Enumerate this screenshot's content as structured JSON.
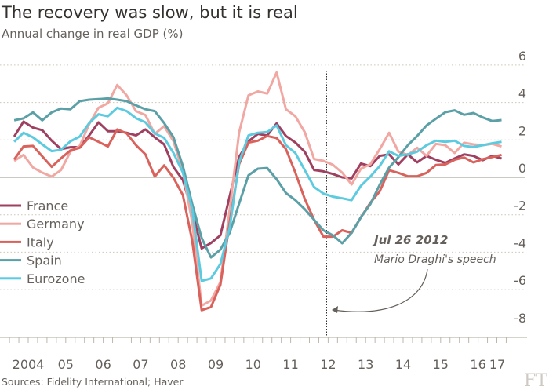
{
  "title": "The recovery was slow, but it is real",
  "subtitle": "Annual change in real GDP (%)",
  "source": "Sources: Fidelity International; Haver",
  "logo": "FT",
  "annotation": {
    "date": "Jul 26 2012",
    "text": "Mario Draghi's speech",
    "x": "2012-07-26"
  },
  "chart_data": {
    "type": "line",
    "title": "The recovery was slow, but it is real",
    "ylabel": "Annual change in real GDP (%)",
    "ylim": [
      -8,
      6
    ],
    "yticks": [
      6,
      4,
      2,
      0,
      -2,
      -4,
      -6,
      -8
    ],
    "ytick_labels": [
      "6",
      "4",
      "2",
      "0",
      "-2",
      "-4",
      "-6",
      "-8"
    ],
    "xtick_years": [
      2004,
      2005,
      2006,
      2007,
      2008,
      2009,
      2010,
      2011,
      2012,
      2013,
      2014,
      2015,
      2016,
      2017
    ],
    "xtick_labels": [
      "2004",
      "05",
      "06",
      "07",
      "08",
      "09",
      "10",
      "11",
      "12",
      "13",
      "14",
      "15",
      "16",
      "17"
    ],
    "grid": true,
    "legend_position": "left",
    "x": [
      "2004Q1",
      "2004Q2",
      "2004Q3",
      "2004Q4",
      "2005Q1",
      "2005Q2",
      "2005Q3",
      "2005Q4",
      "2006Q1",
      "2006Q2",
      "2006Q3",
      "2006Q4",
      "2007Q1",
      "2007Q2",
      "2007Q3",
      "2007Q4",
      "2008Q1",
      "2008Q2",
      "2008Q3",
      "2008Q4",
      "2009Q1",
      "2009Q2",
      "2009Q3",
      "2009Q4",
      "2010Q1",
      "2010Q2",
      "2010Q3",
      "2010Q4",
      "2011Q1",
      "2011Q2",
      "2011Q3",
      "2011Q4",
      "2012Q1",
      "2012Q2",
      "2012Q3",
      "2012Q4",
      "2013Q1",
      "2013Q2",
      "2013Q3",
      "2013Q4",
      "2014Q1",
      "2014Q2",
      "2014Q3",
      "2014Q4",
      "2015Q1",
      "2015Q2",
      "2015Q3",
      "2015Q4",
      "2016Q1",
      "2016Q2",
      "2016Q3",
      "2016Q4",
      "2017Q1"
    ],
    "series": [
      {
        "name": "France",
        "color": "#9f4061",
        "values": [
          2.18,
          2.98,
          2.66,
          2.52,
          1.96,
          1.51,
          1.61,
          1.62,
          2.24,
          2.94,
          2.46,
          2.46,
          2.38,
          2.24,
          2.56,
          2.14,
          1.76,
          0.55,
          -0.15,
          -1.84,
          -3.8,
          -3.51,
          -3.1,
          -1.0,
          1.09,
          1.93,
          2.32,
          2.24,
          2.88,
          2.21,
          1.86,
          1.37,
          0.39,
          0.32,
          0.18,
          0.0,
          -0.06,
          0.74,
          0.6,
          1.15,
          1.23,
          0.69,
          1.23,
          0.8,
          1.15,
          0.94,
          0.77,
          1.01,
          1.23,
          1.15,
          0.92,
          1.15,
          1.01
        ]
      },
      {
        "name": "Germany",
        "color": "#f1a7a2",
        "values": [
          0.88,
          1.2,
          0.53,
          0.25,
          0.04,
          0.39,
          1.37,
          1.68,
          2.84,
          3.72,
          3.96,
          4.94,
          4.38,
          3.54,
          3.33,
          2.32,
          2.74,
          1.93,
          0.3,
          -2.4,
          -6.86,
          -6.58,
          -5.6,
          -1.7,
          2.4,
          4.38,
          4.59,
          4.48,
          5.6,
          3.64,
          3.26,
          2.42,
          0.98,
          0.88,
          0.67,
          0.25,
          -0.38,
          0.46,
          0.7,
          1.5,
          2.38,
          1.37,
          1.2,
          1.58,
          1.15,
          1.79,
          1.72,
          1.3,
          1.85,
          1.76,
          1.72,
          1.79,
          1.65
        ]
      },
      {
        "name": "Italy",
        "color": "#d9625c",
        "values": [
          0.95,
          1.65,
          1.68,
          1.12,
          0.56,
          1.02,
          1.44,
          1.58,
          2.14,
          1.9,
          1.65,
          2.56,
          2.35,
          1.72,
          1.23,
          0.04,
          0.64,
          -0.03,
          -0.95,
          -3.4,
          -7.1,
          -6.93,
          -5.75,
          -2.4,
          0.7,
          1.86,
          1.96,
          2.21,
          2.1,
          1.51,
          0.25,
          -1.15,
          -2.27,
          -3.17,
          -3.17,
          -2.83,
          -2.97,
          -2.13,
          -1.36,
          -0.75,
          0.38,
          0.24,
          0.06,
          0.06,
          0.24,
          0.66,
          0.69,
          0.94,
          1.06,
          0.8,
          0.97,
          1.08,
          1.2
        ]
      },
      {
        "name": "Spain",
        "color": "#5b9fa7",
        "values": [
          3.05,
          3.15,
          3.47,
          3.05,
          3.47,
          3.68,
          3.64,
          4.07,
          4.15,
          4.18,
          4.22,
          4.15,
          4.07,
          3.85,
          3.64,
          3.54,
          2.9,
          2.14,
          0.6,
          -1.42,
          -3.24,
          -4.28,
          -3.86,
          -2.96,
          -1.4,
          0.11,
          0.46,
          0.5,
          -0.1,
          -0.84,
          -1.22,
          -1.7,
          -2.27,
          -2.83,
          -3.1,
          -3.52,
          -2.97,
          -2.13,
          -1.43,
          -0.4,
          0.52,
          1.08,
          1.72,
          2.21,
          2.77,
          3.13,
          3.48,
          3.58,
          3.34,
          3.44,
          3.2,
          3.01,
          3.06
        ]
      },
      {
        "name": "Eurozone",
        "color": "#5ccbe0",
        "values": [
          1.9,
          2.38,
          2.14,
          1.76,
          1.4,
          1.47,
          1.93,
          2.18,
          2.9,
          3.37,
          3.26,
          3.72,
          3.54,
          3.16,
          2.94,
          2.35,
          2.11,
          1.3,
          0.25,
          -1.7,
          -5.54,
          -5.4,
          -4.63,
          -2.68,
          0.81,
          2.24,
          2.38,
          2.42,
          2.77,
          1.72,
          1.3,
          0.39,
          -0.52,
          -0.87,
          -1.03,
          -1.12,
          -1.22,
          -0.45,
          0.04,
          0.6,
          1.39,
          1.15,
          1.23,
          1.37,
          1.72,
          1.96,
          1.9,
          1.96,
          1.68,
          1.62,
          1.72,
          1.82,
          1.9
        ]
      }
    ]
  }
}
